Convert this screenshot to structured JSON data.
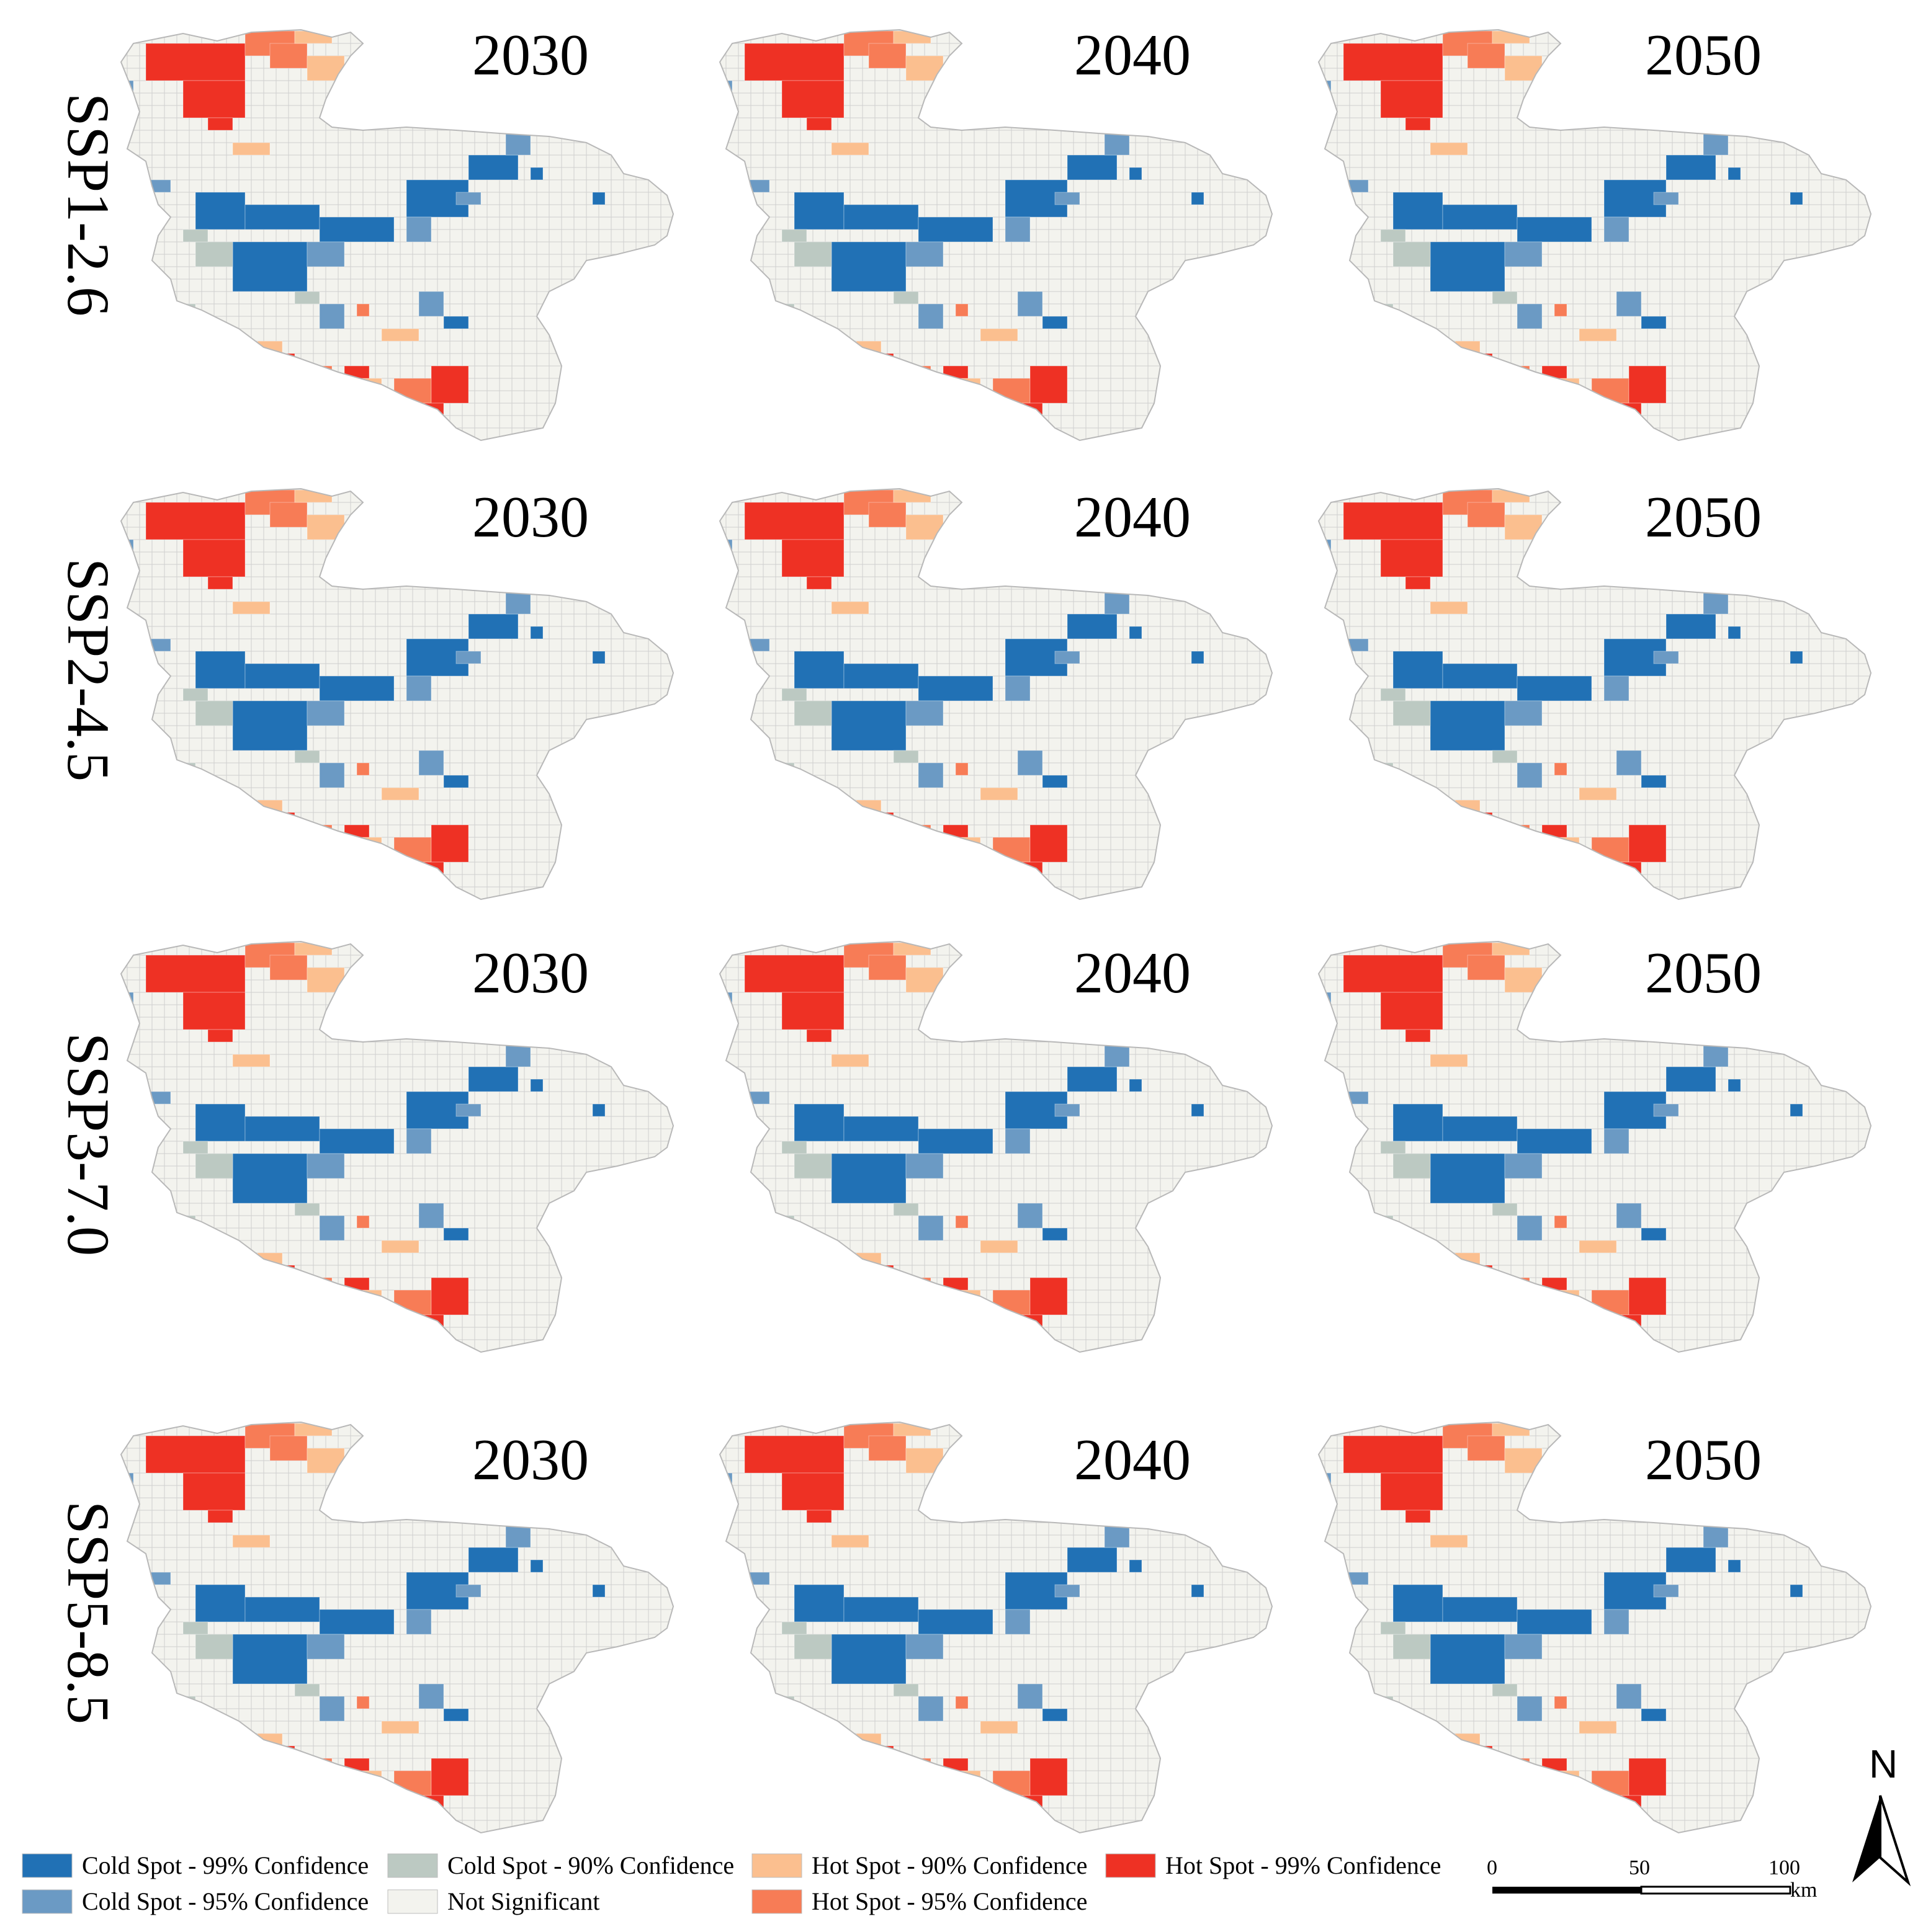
{
  "scenarios": [
    "SSP1-2.6",
    "SSP2-4.5",
    "SSP3-7.0",
    "SSP5-8.5"
  ],
  "years": [
    "2030",
    "2040",
    "2050"
  ],
  "legend": [
    {
      "label": "Cold Spot - 99% Confidence",
      "color": "#2171b5"
    },
    {
      "label": "Cold Spot - 95% Confidence",
      "color": "#6b9ac4"
    },
    {
      "label": "Cold Spot - 90% Confidence",
      "color": "#bcc9c2"
    },
    {
      "label": "Not Significant",
      "color": "#f3f3ee"
    },
    {
      "label": "Hot Spot - 90% Confidence",
      "color": "#fbbf8f"
    },
    {
      "label": "Hot Spot - 95% Confidence",
      "color": "#f77c56"
    },
    {
      "label": "Hot Spot - 99% Confidence",
      "color": "#ee3124"
    }
  ],
  "scale_bar": {
    "ticks": [
      "0",
      "50",
      "100"
    ],
    "unit": "km"
  },
  "north_label": "N"
}
